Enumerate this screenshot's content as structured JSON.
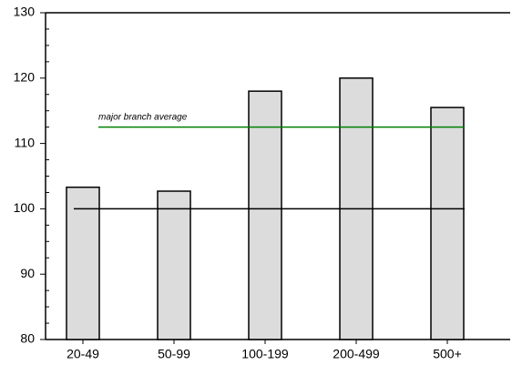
{
  "chart_data": {
    "type": "bar",
    "categories": [
      "20-49",
      "50-99",
      "100-199",
      "200-499",
      "500+"
    ],
    "values": [
      103.3,
      102.7,
      118.0,
      120.0,
      115.5
    ],
    "color": "#dcdcdc",
    "ylim": [
      80,
      130
    ],
    "yticks": [
      80,
      90,
      100,
      110,
      120,
      130
    ],
    "yminor": [
      82.5,
      85,
      87.5,
      92.5,
      95,
      97.5,
      102.5,
      105,
      107.5,
      112.5,
      115,
      117.5,
      122.5,
      125,
      127.5
    ],
    "reference_lines": [
      {
        "value": 100,
        "color": "#000000"
      },
      {
        "value": 112.5,
        "color": "#008000",
        "label": "major branch average"
      }
    ]
  }
}
